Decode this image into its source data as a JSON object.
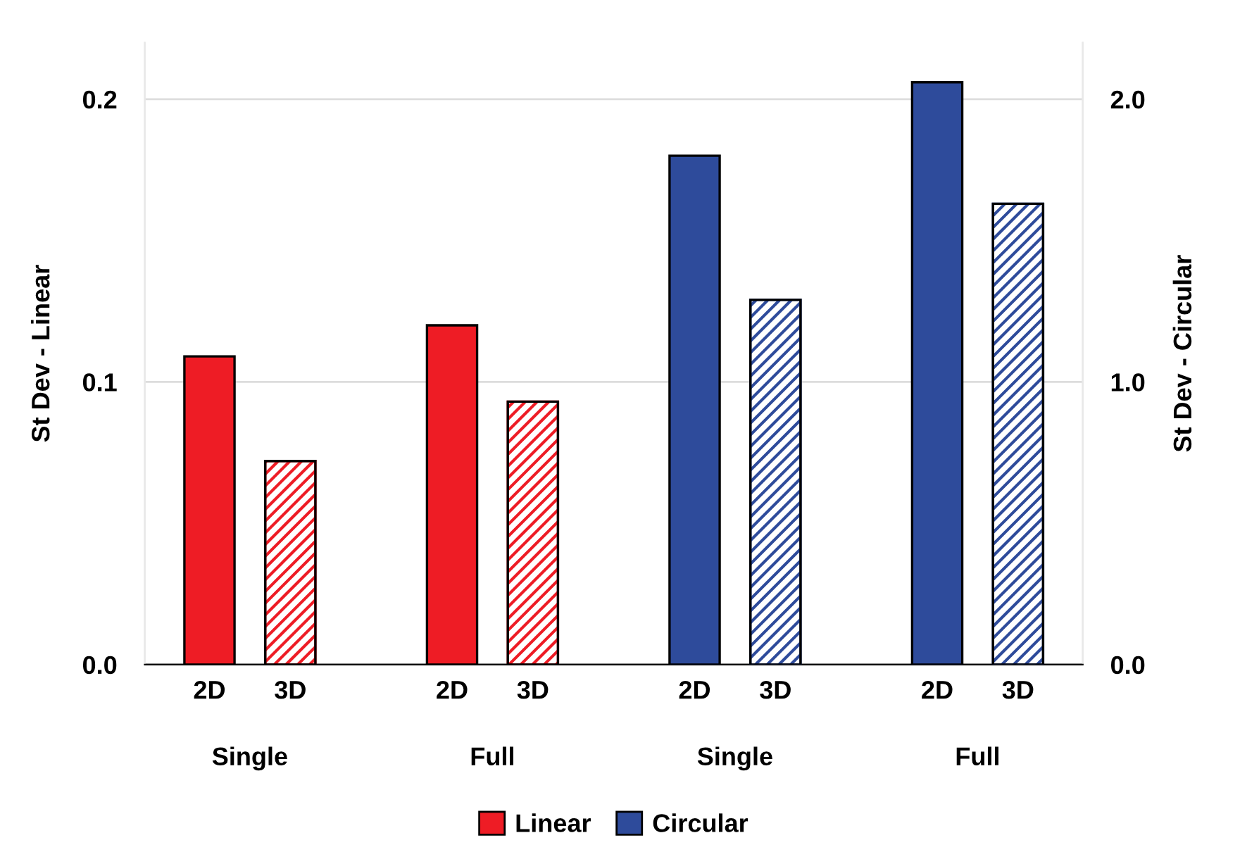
{
  "chart_data": {
    "type": "bar",
    "categories": [
      "2D",
      "3D",
      null,
      "2D",
      "3D",
      null,
      "2D",
      "3D",
      null,
      "2D",
      "3D"
    ],
    "series": [
      {
        "name": "Linear",
        "color": "#ee1c25",
        "values": [
          0.109,
          0.072,
          null,
          0.12,
          0.093,
          null,
          null,
          null,
          null,
          null,
          null
        ]
      },
      {
        "name": "Circular",
        "color": "#2e4b9b",
        "axis": "y2",
        "values": [
          null,
          null,
          null,
          null,
          null,
          null,
          1.8,
          1.29,
          null,
          2.06,
          1.63
        ]
      }
    ],
    "ylabel": "St Dev - Linear",
    "y2label": "St Dev - Circular",
    "ylim": [
      0,
      0.22
    ],
    "yticks": [
      {
        "value": 0,
        "label": "0.0"
      },
      {
        "value": 0.1,
        "label": "0.1"
      },
      {
        "value": 0.2,
        "label": "0.2"
      }
    ],
    "y2lim": [
      0,
      2.2
    ],
    "y2ticks": [
      {
        "value": 0,
        "label": "0.0"
      },
      {
        "value": 1,
        "label": "1.0"
      },
      {
        "value": 2,
        "label": "2.0"
      }
    ],
    "annotations": [
      "Single",
      "Full",
      "Single",
      "Full"
    ],
    "grid": "y",
    "legend": "bottom"
  }
}
